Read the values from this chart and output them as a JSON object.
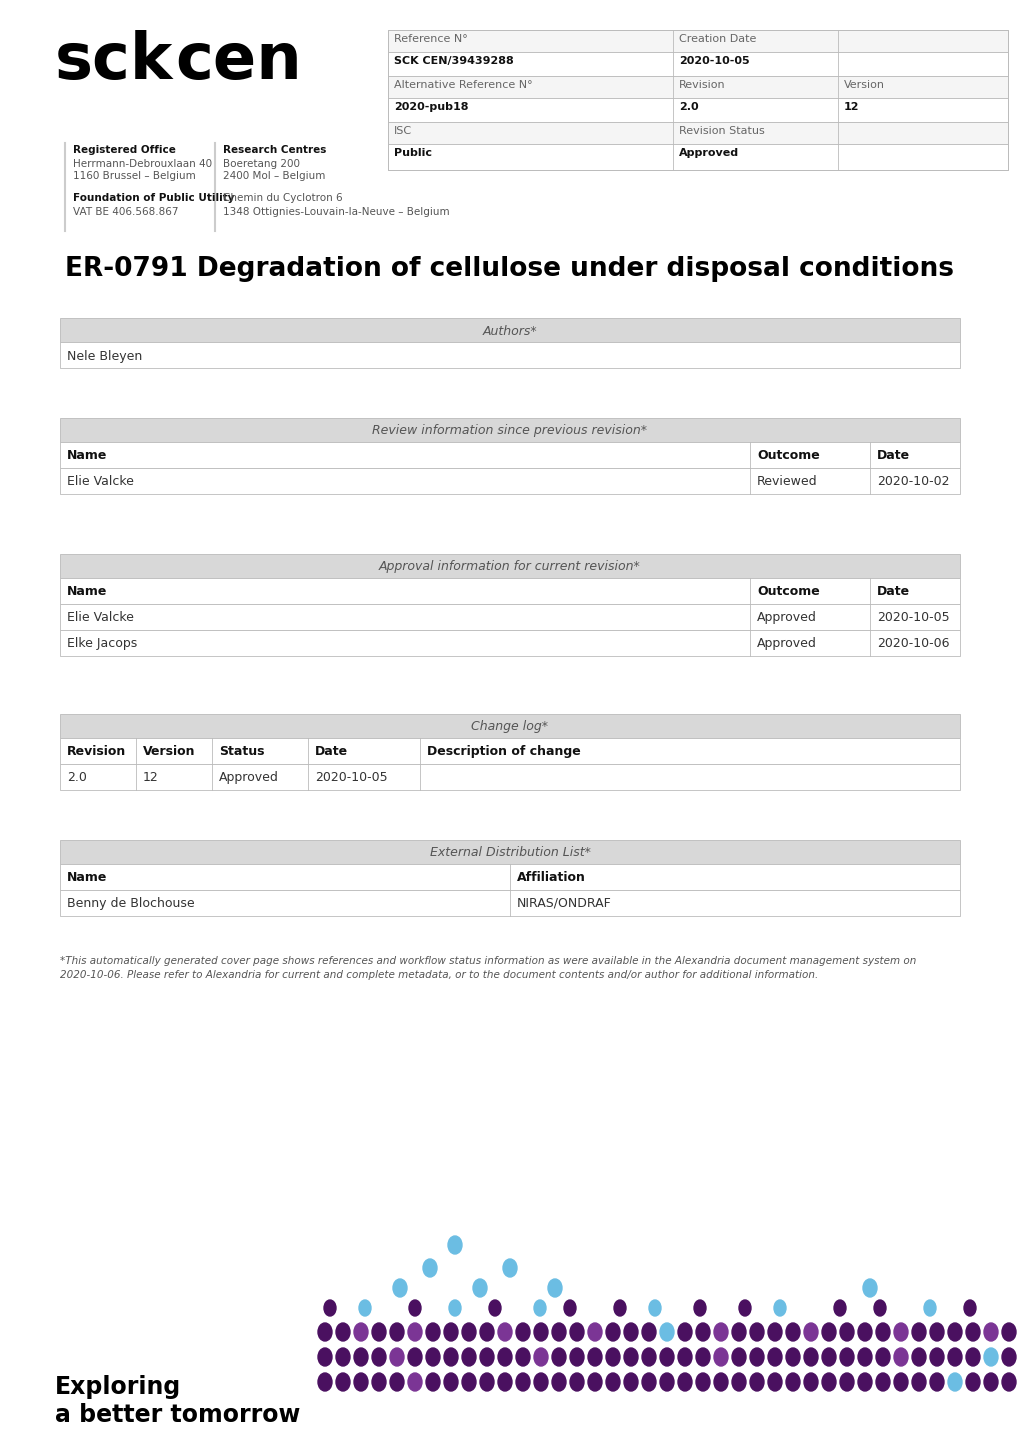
{
  "title": "ER-0791 Degradation of cellulose under disposal conditions",
  "logo_text": "sck cen",
  "registered_office_bold": "Registered Office",
  "registered_office_lines": [
    "Herrmann-Debrouxlaan 40",
    "1160 Brussel – Belgium"
  ],
  "foundation_bold": "Foundation of Public Utility",
  "foundation_lines": [
    "VAT BE 406.568.867"
  ],
  "research_centres_bold": "Research Centres",
  "research_centres_lines": [
    "Boeretang 200",
    "2400 Mol – Belgium"
  ],
  "chemin_lines": [
    "Chemin du Cyclotron 6",
    "1348 Ottignies-Louvain-la-Neuve – Belgium"
  ],
  "ref_table": {
    "row1_label": "Reference N°",
    "row1_val": "Creation Date",
    "row2_label": "SCK CEN/39439288",
    "row2_val": "2020-10-05",
    "row3_label": "Alternative Reference N°",
    "row3_col2": "Revision",
    "row3_col3": "Version",
    "row4_label": "2020-pub18",
    "row4_col2": "2.0",
    "row4_col3": "12",
    "row5_label": "ISC",
    "row5_val": "Revision Status",
    "row6_label": "Public",
    "row6_val": "Approved"
  },
  "authors_header": "Authors*",
  "authors_name": "Nele Bleyen",
  "review_header": "Review information since previous revision*",
  "review_cols": [
    "Name",
    "Outcome",
    "Date"
  ],
  "review_rows": [
    [
      "Elie Valcke",
      "Reviewed",
      "2020-10-02"
    ]
  ],
  "approval_header": "Approval information for current revision*",
  "approval_cols": [
    "Name",
    "Outcome",
    "Date"
  ],
  "approval_rows": [
    [
      "Elie Valcke",
      "Approved",
      "2020-10-05"
    ],
    [
      "Elke Jacops",
      "Approved",
      "2020-10-06"
    ]
  ],
  "changelog_header": "Change log*",
  "changelog_cols": [
    "Revision",
    "Version",
    "Status",
    "Date",
    "Description of change"
  ],
  "changelog_rows": [
    [
      "2.0",
      "12",
      "Approved",
      "2020-10-05",
      ""
    ]
  ],
  "distribution_header": "External Distribution List*",
  "distribution_cols": [
    "Name",
    "Affiliation"
  ],
  "distribution_rows": [
    [
      "Benny de Blochouse",
      "NIRAS/ONDRAF"
    ]
  ],
  "footnote1": "*This automatically generated cover page shows references and workflow status information as were available in the Alexandria document management system on",
  "footnote2": "2020-10-06. Please refer to Alexandria for current and complete metadata, or to the document contents and/or author for additional information.",
  "exploring_text1": "Exploring",
  "exploring_text2": "a better tomorrow",
  "header_bg": "#d8d8d8",
  "table_border": "#bbbbbb",
  "dot_purple_dark": "#4a1060",
  "dot_purple_mid": "#7b3595",
  "dot_blue_light": "#6bbde3",
  "dot_magenta": "#9b3b9b"
}
